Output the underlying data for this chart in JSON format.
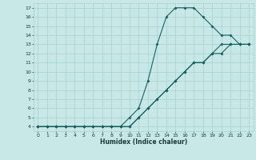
{
  "background_color": "#c8e8e8",
  "grid_color": "#a8d0d0",
  "line_color": "#1a6060",
  "xlabel": "Humidex (Indice chaleur)",
  "xlim": [
    -0.5,
    23.5
  ],
  "ylim": [
    3.5,
    17.5
  ],
  "xticks": [
    0,
    1,
    2,
    3,
    4,
    5,
    6,
    7,
    8,
    9,
    10,
    11,
    12,
    13,
    14,
    15,
    16,
    17,
    18,
    19,
    20,
    21,
    22,
    23
  ],
  "yticks": [
    4,
    5,
    6,
    7,
    8,
    9,
    10,
    11,
    12,
    13,
    14,
    15,
    16,
    17
  ],
  "line1_x": [
    0,
    1,
    2,
    3,
    4,
    5,
    6,
    7,
    8,
    9,
    10,
    11,
    12,
    13,
    14,
    15,
    16,
    17,
    18,
    19,
    20,
    21,
    22,
    23
  ],
  "line1_y": [
    4,
    4,
    4,
    4,
    4,
    4,
    4,
    4,
    4,
    4,
    4,
    5,
    6,
    7,
    8,
    9,
    10,
    11,
    11,
    12,
    12,
    13,
    13,
    13
  ],
  "line2_x": [
    0,
    1,
    2,
    3,
    4,
    5,
    6,
    7,
    8,
    9,
    10,
    11,
    12,
    13,
    14,
    15,
    16,
    17,
    18,
    19,
    20,
    21,
    22,
    23
  ],
  "line2_y": [
    4,
    4,
    4,
    4,
    4,
    4,
    4,
    4,
    4,
    4,
    5,
    6,
    9,
    13,
    16,
    17,
    17,
    17,
    16,
    15,
    14,
    14,
    13,
    13
  ],
  "line3_x": [
    0,
    1,
    2,
    3,
    4,
    5,
    6,
    7,
    8,
    9,
    10,
    11,
    12,
    13,
    14,
    15,
    16,
    17,
    18,
    19,
    20,
    21,
    22,
    23
  ],
  "line3_y": [
    4,
    4,
    4,
    4,
    4,
    4,
    4,
    4,
    4,
    4,
    4,
    5,
    6,
    7,
    8,
    9,
    10,
    11,
    11,
    12,
    13,
    13,
    13,
    13
  ]
}
